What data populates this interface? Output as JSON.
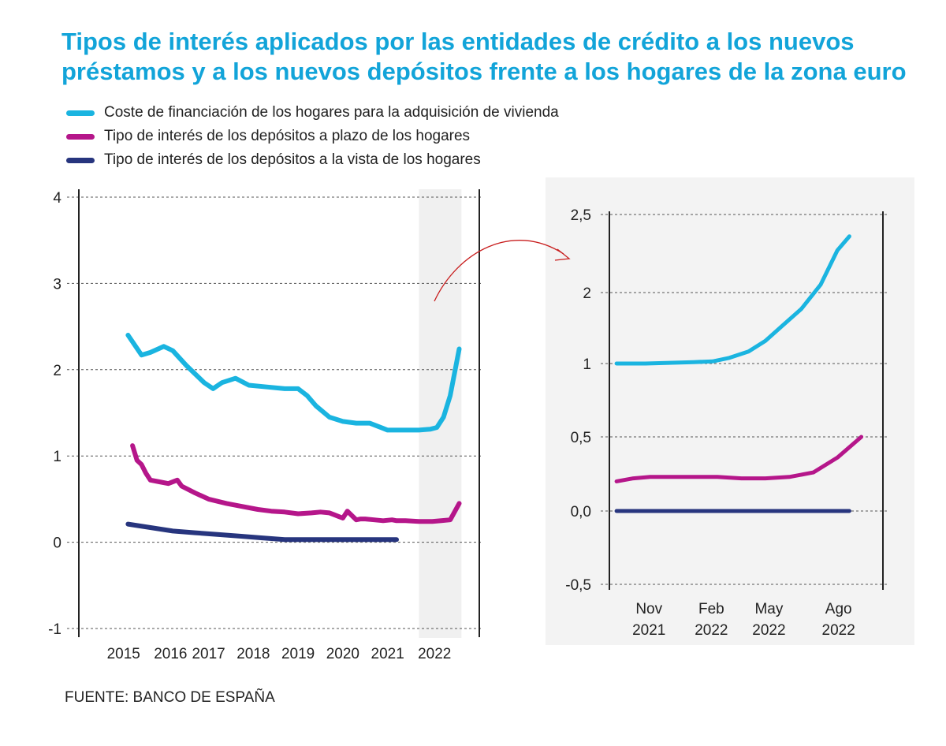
{
  "title_lines": [
    "Tipos de interés aplicados por las entidades de crédito a los nuevos",
    "préstamos y a los nuevos depósitos frente a los hogares de la zona euro"
  ],
  "legend": [
    {
      "label": "Coste de financiación de los hogares para la adquisición de vivienda",
      "color": "#1ab4e0"
    },
    {
      "label": "Tipo de interés de los depósitos a plazo de los hogares",
      "color": "#b5168a"
    },
    {
      "label": "Tipo de interés de los depósitos a la vista de los hogares",
      "color": "#27357e"
    }
  ],
  "source": "FUENTE: BANCO DE ESPAÑA",
  "chart_data": [
    {
      "type": "line",
      "x_unit": "year (decimal)",
      "xlim": [
        2014.0,
        2022.95
      ],
      "ylim": [
        -1,
        4
      ],
      "y_ticks": [
        {
          "value": 4,
          "label": "4"
        },
        {
          "value": 3,
          "label": "3"
        },
        {
          "value": 2,
          "label": "2"
        },
        {
          "value": 1,
          "label": "1"
        },
        {
          "value": 0,
          "label": "0"
        },
        {
          "value": -1,
          "label": "-1"
        }
      ],
      "x_ticks": [
        {
          "value": 2015.0,
          "label": "2015"
        },
        {
          "value": 2016.05,
          "label": "2016"
        },
        {
          "value": 2016.9,
          "label": "2017"
        },
        {
          "value": 2017.9,
          "label": "2018"
        },
        {
          "value": 2018.9,
          "label": "2019"
        },
        {
          "value": 2019.9,
          "label": "2020"
        },
        {
          "value": 2020.9,
          "label": "2021"
        },
        {
          "value": 2021.95,
          "label": "2022"
        }
      ],
      "highlight_range": [
        2021.6,
        2022.55
      ],
      "grid": "horizontal dashed",
      "series": [
        {
          "color": "#1ab4e0",
          "x": [
            2015.1,
            2015.4,
            2015.6,
            2015.9,
            2016.1,
            2016.4,
            2016.8,
            2017.0,
            2017.2,
            2017.5,
            2017.8,
            2018.2,
            2018.6,
            2018.9,
            2019.1,
            2019.3,
            2019.6,
            2019.9,
            2020.2,
            2020.5,
            2020.8,
            2020.9,
            2021.3,
            2021.6,
            2021.85,
            2022.0,
            2022.15,
            2022.3,
            2022.5
          ],
          "y": [
            2.4,
            2.17,
            2.2,
            2.27,
            2.22,
            2.05,
            1.85,
            1.78,
            1.85,
            1.9,
            1.82,
            1.8,
            1.78,
            1.78,
            1.7,
            1.58,
            1.45,
            1.4,
            1.38,
            1.38,
            1.32,
            1.3,
            1.3,
            1.3,
            1.31,
            1.33,
            1.45,
            1.7,
            2.24
          ]
        },
        {
          "color": "#b5168a",
          "x": [
            2015.2,
            2015.3,
            2015.4,
            2015.5,
            2015.6,
            2015.8,
            2016.0,
            2016.2,
            2016.3,
            2016.6,
            2016.9,
            2017.3,
            2017.6,
            2018.0,
            2018.3,
            2018.6,
            2018.9,
            2019.2,
            2019.4,
            2019.6,
            2019.7,
            2019.8,
            2019.9,
            2020.0,
            2020.2,
            2020.3,
            2020.4,
            2020.6,
            2020.8,
            2021.0,
            2021.1,
            2021.3,
            2021.6,
            2021.9,
            2022.1,
            2022.3,
            2022.5
          ],
          "y": [
            1.12,
            0.95,
            0.9,
            0.8,
            0.72,
            0.7,
            0.68,
            0.72,
            0.65,
            0.57,
            0.5,
            0.45,
            0.42,
            0.38,
            0.36,
            0.35,
            0.33,
            0.34,
            0.35,
            0.34,
            0.32,
            0.3,
            0.28,
            0.36,
            0.26,
            0.27,
            0.27,
            0.26,
            0.25,
            0.26,
            0.25,
            0.25,
            0.24,
            0.24,
            0.25,
            0.26,
            0.45
          ]
        },
        {
          "color": "#27357e",
          "x": [
            2015.1,
            2015.6,
            2016.1,
            2016.6,
            2017.1,
            2017.6,
            2018.1,
            2018.6,
            2019.1,
            2019.6,
            2020.1,
            2020.6,
            2021.1
          ],
          "y": [
            0.21,
            0.17,
            0.13,
            0.11,
            0.09,
            0.07,
            0.05,
            0.03,
            0.03,
            0.03,
            0.03,
            0.03,
            0.03
          ]
        }
      ]
    },
    {
      "type": "line",
      "x_unit": "months since Oct 2021",
      "xlim": [
        0,
        11.4
      ],
      "ylim": [
        -0.5,
        2.5
      ],
      "y_ticks": [
        {
          "value": 2.5,
          "label": "2,5"
        },
        {
          "value": 2,
          "label": "2"
        },
        {
          "value": 1,
          "label": "1"
        },
        {
          "value": 0.5,
          "label": "0,5"
        },
        {
          "value": 0,
          "label": "0,0"
        },
        {
          "value": -0.5,
          "label": "-0,5"
        }
      ],
      "x_ticks": [
        {
          "value": 1.65,
          "lines": [
            "Nov",
            "2021"
          ]
        },
        {
          "value": 4.25,
          "lines": [
            "Feb",
            "2022"
          ]
        },
        {
          "value": 6.65,
          "lines": [
            "May",
            "2022"
          ]
        },
        {
          "value": 9.55,
          "lines": [
            "Ago",
            "2022"
          ]
        }
      ],
      "grid": "horizontal dashed",
      "series": [
        {
          "color": "#1ab4e0",
          "x": [
            0.3,
            1.5,
            2.5,
            3.5,
            4.3,
            5.0,
            5.8,
            6.5,
            7.2,
            8.0,
            8.8,
            9.5,
            10.0
          ],
          "y": [
            1.0,
            1.0,
            1.01,
            1.02,
            1.03,
            1.08,
            1.17,
            1.32,
            1.53,
            1.77,
            2.05,
            2.27,
            2.36
          ]
        },
        {
          "color": "#b5168a",
          "x": [
            0.3,
            1.0,
            1.7,
            2.5,
            3.5,
            4.5,
            5.5,
            6.5,
            7.5,
            8.5,
            9.5,
            10.5
          ],
          "y": [
            0.2,
            0.22,
            0.23,
            0.23,
            0.23,
            0.23,
            0.22,
            0.22,
            0.23,
            0.26,
            0.36,
            0.5
          ]
        },
        {
          "color": "#27357e",
          "x": [
            0.3,
            10.0
          ],
          "y": [
            0.0,
            0.0
          ]
        }
      ]
    }
  ]
}
